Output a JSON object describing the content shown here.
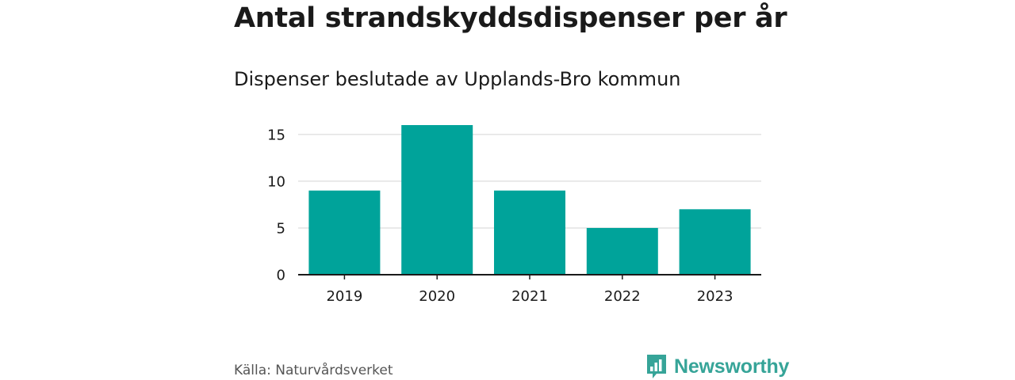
{
  "title": "Antal strandskyddsdispenser per år",
  "subtitle": "Dispenser beslutade av Upplands-Bro kommun",
  "source": "Källa: Naturvårdsverket",
  "logo": {
    "text": "Newsworthy",
    "icon": "bar-chart-speech-icon"
  },
  "colors": {
    "bar": "#00a39a",
    "grid": "#d4d4d4",
    "axis": "#1a1a1a",
    "logo": "#36a498"
  },
  "chart_data": {
    "type": "bar",
    "title": "Antal strandskyddsdispenser per år",
    "subtitle": "Dispenser beslutade av Upplands-Bro kommun",
    "categories": [
      "2019",
      "2020",
      "2021",
      "2022",
      "2023"
    ],
    "values": [
      9,
      16,
      9,
      5,
      7
    ],
    "xlabel": "",
    "ylabel": "",
    "ylim": [
      0,
      16
    ],
    "yticks": [
      0,
      5,
      10,
      15
    ],
    "grid": true,
    "legend": "none"
  }
}
